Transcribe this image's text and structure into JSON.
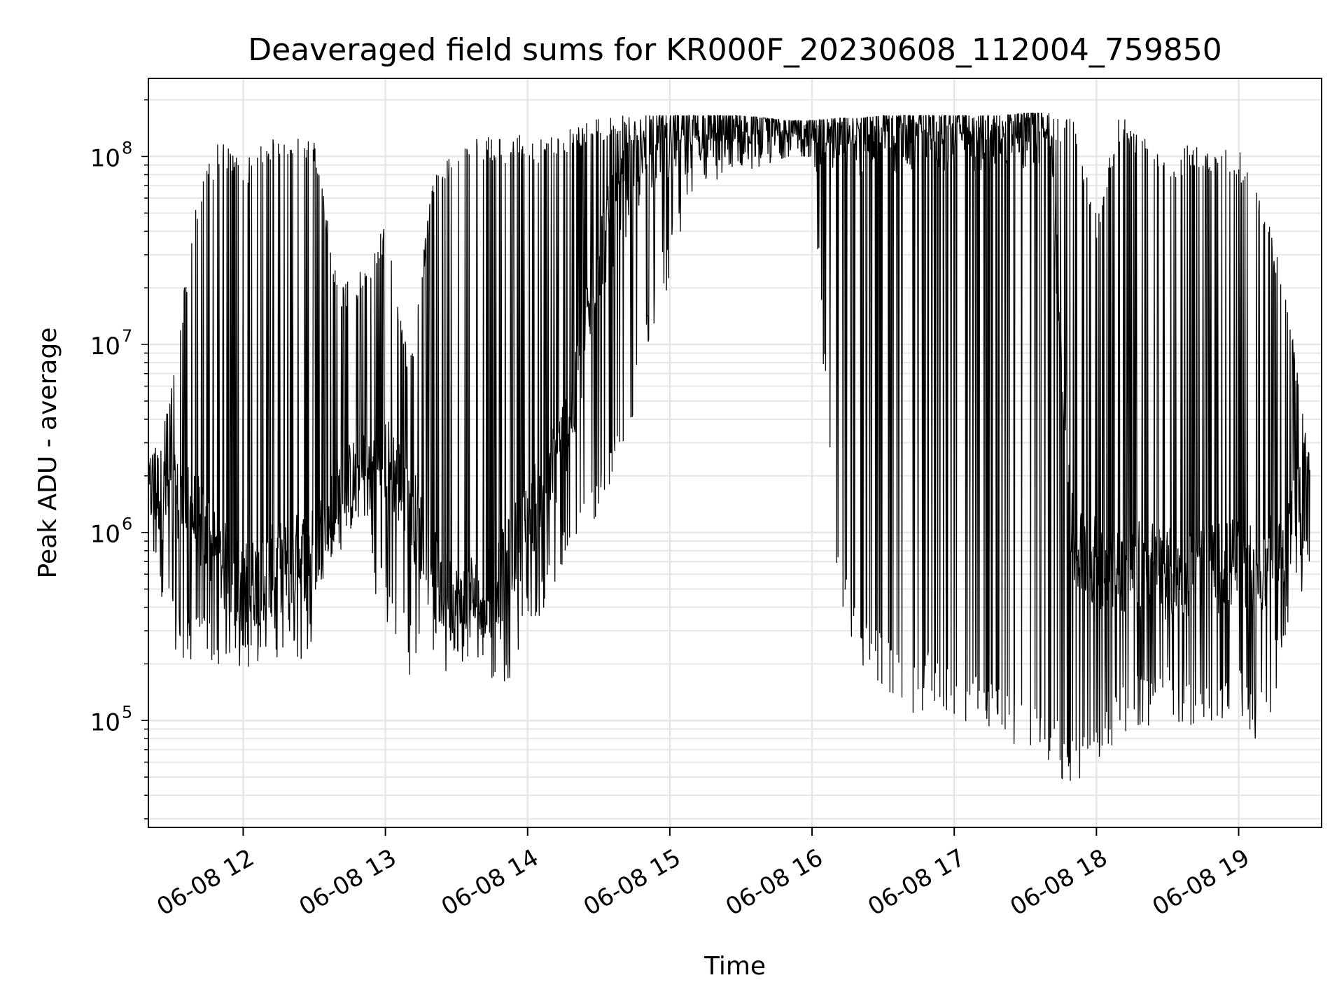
{
  "chart_data": {
    "type": "line",
    "title": "Deaveraged field sums for KR000F_20230608_112004_759850",
    "xlabel": "Time",
    "ylabel": "Peak ADU - average",
    "yscale": "log",
    "ylim": [
      27000,
      260000000
    ],
    "xlim": [
      "2023-06-08 11:20",
      "2023-06-08 19:35"
    ],
    "grid": true,
    "line_color": "#000000",
    "grid_color": "#e6e6e6",
    "x_ticks": [
      {
        "label": "06-08 12",
        "value": "2023-06-08 12:00"
      },
      {
        "label": "06-08 13",
        "value": "2023-06-08 13:00"
      },
      {
        "label": "06-08 14",
        "value": "2023-06-08 14:00"
      },
      {
        "label": "06-08 15",
        "value": "2023-06-08 15:00"
      },
      {
        "label": "06-08 16",
        "value": "2023-06-08 16:00"
      },
      {
        "label": "06-08 17",
        "value": "2023-06-08 17:00"
      },
      {
        "label": "06-08 18",
        "value": "2023-06-08 18:00"
      },
      {
        "label": "06-08 19",
        "value": "2023-06-08 19:00"
      }
    ],
    "y_ticks": [
      {
        "base": "10",
        "exp": "5",
        "value": 100000
      },
      {
        "base": "10",
        "exp": "6",
        "value": 1000000
      },
      {
        "base": "10",
        "exp": "7",
        "value": 10000000
      },
      {
        "base": "10",
        "exp": "8",
        "value": 100000000
      }
    ],
    "series": [
      {
        "x": [
          "2023-06-08 11:20",
          "2023-06-08 11:30",
          "2023-06-08 11:40",
          "2023-06-08 11:50",
          "2023-06-08 12:00",
          "2023-06-08 12:10",
          "2023-06-08 12:20",
          "2023-06-08 12:30",
          "2023-06-08 12:40",
          "2023-06-08 12:50",
          "2023-06-08 13:00",
          "2023-06-08 13:10",
          "2023-06-08 13:20",
          "2023-06-08 13:30",
          "2023-06-08 13:40",
          "2023-06-08 13:50",
          "2023-06-08 14:00",
          "2023-06-08 14:10",
          "2023-06-08 14:20",
          "2023-06-08 14:30",
          "2023-06-08 14:40",
          "2023-06-08 14:50",
          "2023-06-08 15:00",
          "2023-06-08 15:10",
          "2023-06-08 15:20",
          "2023-06-08 15:30",
          "2023-06-08 15:40",
          "2023-06-08 15:50",
          "2023-06-08 16:00",
          "2023-06-08 16:10",
          "2023-06-08 16:20",
          "2023-06-08 16:30",
          "2023-06-08 16:40",
          "2023-06-08 16:50",
          "2023-06-08 17:00",
          "2023-06-08 17:10",
          "2023-06-08 17:20",
          "2023-06-08 17:30",
          "2023-06-08 17:40",
          "2023-06-08 17:50",
          "2023-06-08 18:00",
          "2023-06-08 18:10",
          "2023-06-08 18:20",
          "2023-06-08 18:30",
          "2023-06-08 18:40",
          "2023-06-08 18:50",
          "2023-06-08 19:00",
          "2023-06-08 19:10",
          "2023-06-08 19:20",
          "2023-06-08 19:30"
        ],
        "y": [
          1800000,
          1500000,
          1200000,
          700000,
          500000,
          600000,
          700000,
          800000,
          1500000,
          2000000,
          2500000,
          1500000,
          600000,
          400000,
          500000,
          600000,
          1200000,
          2000000,
          5000000,
          30000000,
          60000000,
          110000000,
          140000000,
          155000000,
          160000000,
          150000000,
          155000000,
          150000000,
          145000000,
          145000000,
          140000000,
          140000000,
          142000000,
          145000000,
          145000000,
          142000000,
          145000000,
          150000000,
          155000000,
          800000,
          700000,
          650000,
          700000,
          600000,
          600000,
          650000,
          700000,
          600000,
          900000,
          1700000
        ],
        "y_min": [
          800000,
          250000,
          180000,
          200000,
          180000,
          200000,
          200000,
          220000,
          700000,
          900000,
          300000,
          170000,
          170000,
          170000,
          200000,
          130000,
          350000,
          350000,
          800000,
          1200000,
          2000000,
          9500000,
          20000000,
          60000000,
          70000000,
          80000000,
          90000000,
          100000000,
          100000000,
          400000,
          200000,
          150000,
          100000,
          120000,
          90000,
          90000,
          80000,
          70000,
          60000,
          40000,
          60000,
          80000,
          90000,
          100000,
          90000,
          100000,
          100000,
          70000,
          250000,
          600000
        ],
        "y_max": [
          2300000,
          6500000,
          60000000,
          130000000,
          90000000,
          130000000,
          130000000,
          130000000,
          20000000,
          25000000,
          45000000,
          8000000,
          75000000,
          120000000,
          125000000,
          130000000,
          130000000,
          130000000,
          150000000,
          165000000,
          165000000,
          165000000,
          165000000,
          165000000,
          165000000,
          165000000,
          160000000,
          155000000,
          155000000,
          160000000,
          160000000,
          165000000,
          165000000,
          165000000,
          165000000,
          165000000,
          165000000,
          170000000,
          170000000,
          165000000,
          50000000,
          170000000,
          130000000,
          90000000,
          120000000,
          110000000,
          110000000,
          60000000,
          20000000,
          2500000
        ]
      }
    ]
  }
}
